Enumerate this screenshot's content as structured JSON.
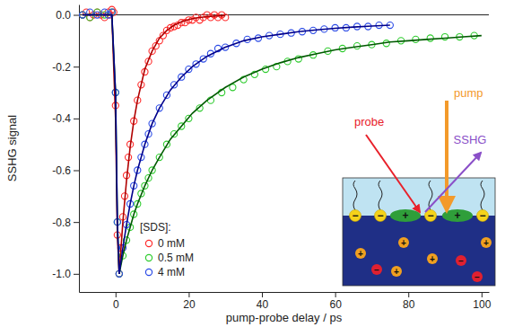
{
  "chart_data": {
    "type": "scatter",
    "x_label": "pump-probe delay / ps",
    "y_label": "SSHG signal",
    "xlim": [
      -10,
      102
    ],
    "ylim": [
      -1.07,
      0.04
    ],
    "xticks": [
      0,
      20,
      40,
      60,
      80,
      100
    ],
    "yticks": [
      {
        "value": 0,
        "label": "0.0"
      },
      -0.2,
      -0.4,
      -0.6,
      -0.8,
      {
        "value": -1,
        "label": "-1.0"
      }
    ],
    "grid": false,
    "legend": "bottom-left",
    "annotations": [
      "[SDS]:",
      "probe",
      "pump",
      "SSHG",
      "+",
      "−"
    ],
    "series": [
      {
        "name": "0 mM",
        "type": "scatter",
        "marker": "circle",
        "color": "#ff2a2a",
        "x": [
          -9,
          -8,
          -7,
          -6,
          -5,
          -4,
          -3,
          -2,
          -1.5,
          -1,
          -0.5,
          0,
          0.5,
          1,
          1.5,
          2,
          2.5,
          3,
          3.5,
          4,
          5,
          6,
          7,
          8,
          9,
          10,
          11,
          12,
          13,
          14,
          15,
          16,
          17,
          18,
          19,
          20,
          21,
          22,
          23,
          24,
          25,
          26,
          27,
          28,
          29,
          30
        ],
        "values": [
          0.0,
          0.01,
          -0.01,
          0.0,
          0.01,
          0.0,
          -0.01,
          0.01,
          0.0,
          0.02,
          0.01,
          -0.35,
          -0.85,
          -1.0,
          -0.9,
          -0.78,
          -0.7,
          -0.62,
          -0.55,
          -0.5,
          -0.41,
          -0.33,
          -0.27,
          -0.22,
          -0.18,
          -0.14,
          -0.12,
          -0.1,
          -0.08,
          -0.06,
          -0.05,
          -0.045,
          -0.04,
          -0.03,
          -0.03,
          -0.02,
          -0.02,
          -0.01,
          -0.02,
          -0.01,
          0.0,
          -0.01,
          0.0,
          -0.01,
          0.0,
          -0.01
        ]
      },
      {
        "name": "0.5 mM",
        "type": "scatter",
        "marker": "circle",
        "color": "#2ecc2e",
        "x": [
          -9,
          -7,
          -5,
          -3,
          -1,
          0,
          0.5,
          1,
          2,
          3,
          4,
          5,
          6,
          7,
          8,
          9,
          10,
          12,
          14,
          16,
          18,
          20,
          23,
          26,
          29,
          32,
          35,
          38,
          41,
          44,
          47,
          50,
          54,
          58,
          62,
          66,
          70,
          74,
          78,
          82,
          86,
          90,
          94,
          98
        ],
        "values": [
          0.0,
          -0.01,
          0.01,
          0.0,
          0.01,
          -0.3,
          -0.8,
          -1.0,
          -0.93,
          -0.87,
          -0.82,
          -0.77,
          -0.73,
          -0.69,
          -0.66,
          -0.63,
          -0.6,
          -0.55,
          -0.5,
          -0.46,
          -0.43,
          -0.4,
          -0.36,
          -0.33,
          -0.3,
          -0.28,
          -0.25,
          -0.23,
          -0.21,
          -0.2,
          -0.18,
          -0.17,
          -0.155,
          -0.14,
          -0.13,
          -0.12,
          -0.115,
          -0.11,
          -0.1,
          -0.095,
          -0.09,
          -0.085,
          -0.085,
          -0.08
        ]
      },
      {
        "name": "4 mM",
        "type": "scatter",
        "marker": "circle",
        "color": "#2a4ae6",
        "x": [
          -9,
          -7,
          -5,
          -3,
          -2,
          -1,
          0,
          0.5,
          1,
          2,
          3,
          4,
          5,
          6,
          7,
          8,
          9,
          10,
          12,
          14,
          16,
          18,
          20,
          22,
          24,
          26,
          28,
          30,
          33,
          36,
          39,
          42,
          45,
          48,
          51,
          54,
          57,
          60,
          63,
          66,
          69,
          72,
          75
        ],
        "values": [
          0.0,
          0.01,
          0.0,
          0.01,
          0.0,
          0.01,
          -0.3,
          -0.8,
          -1.0,
          -0.9,
          -0.81,
          -0.73,
          -0.66,
          -0.6,
          -0.55,
          -0.5,
          -0.46,
          -0.42,
          -0.36,
          -0.31,
          -0.27,
          -0.24,
          -0.21,
          -0.19,
          -0.17,
          -0.15,
          -0.13,
          -0.125,
          -0.11,
          -0.095,
          -0.09,
          -0.08,
          -0.075,
          -0.07,
          -0.065,
          -0.06,
          -0.055,
          -0.05,
          -0.05,
          -0.045,
          -0.045,
          -0.04,
          -0.04
        ]
      },
      {
        "type": "line",
        "color": "#b00000",
        "x": [
          -9,
          -1,
          0,
          0.5,
          1,
          2,
          3,
          4,
          5,
          6,
          8,
          10,
          12,
          14,
          16,
          18,
          20,
          22,
          25,
          28,
          30
        ],
        "values": [
          0,
          0,
          -0.4,
          -0.85,
          -1.0,
          -0.8,
          -0.64,
          -0.51,
          -0.41,
          -0.33,
          -0.21,
          -0.14,
          -0.09,
          -0.06,
          -0.04,
          -0.027,
          -0.018,
          -0.012,
          -0.007,
          -0.004,
          -0.003
        ]
      },
      {
        "type": "line",
        "color": "#005a00",
        "x": [
          -9,
          -1,
          0,
          0.5,
          1,
          2,
          3,
          4,
          5,
          6,
          8,
          10,
          12,
          15,
          18,
          21,
          25,
          30,
          35,
          40,
          45,
          50,
          55,
          60,
          65,
          70,
          75,
          80,
          85,
          90,
          95,
          100
        ],
        "values": [
          0,
          0,
          -0.3,
          -0.8,
          -1.0,
          -0.93,
          -0.87,
          -0.82,
          -0.77,
          -0.73,
          -0.66,
          -0.6,
          -0.55,
          -0.48,
          -0.43,
          -0.38,
          -0.33,
          -0.28,
          -0.24,
          -0.21,
          -0.185,
          -0.165,
          -0.15,
          -0.135,
          -0.125,
          -0.115,
          -0.105,
          -0.1,
          -0.095,
          -0.09,
          -0.085,
          -0.08
        ]
      },
      {
        "type": "line",
        "color": "#00008c",
        "x": [
          -9,
          -1,
          0,
          0.5,
          1,
          2,
          3,
          4,
          5,
          6,
          8,
          10,
          12,
          15,
          18,
          21,
          25,
          30,
          35,
          40,
          45,
          50,
          55,
          60,
          65,
          70,
          75
        ],
        "values": [
          0,
          0,
          -0.3,
          -0.8,
          -1.0,
          -0.9,
          -0.81,
          -0.73,
          -0.66,
          -0.6,
          -0.5,
          -0.42,
          -0.36,
          -0.29,
          -0.24,
          -0.2,
          -0.16,
          -0.125,
          -0.1,
          -0.085,
          -0.075,
          -0.065,
          -0.058,
          -0.052,
          -0.047,
          -0.043,
          -0.04
        ]
      }
    ]
  }
}
